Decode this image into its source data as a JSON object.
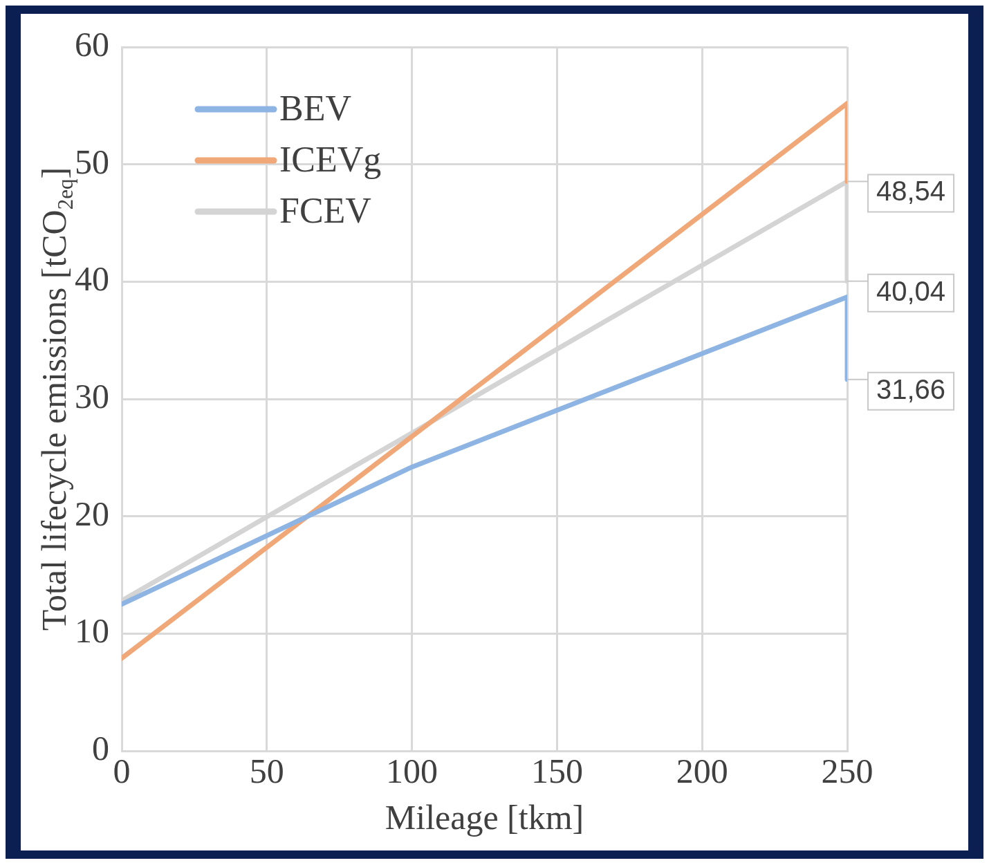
{
  "chart_data": {
    "type": "line",
    "xlabel": "Mileage [tkm]",
    "ylabel": "Total lifecycle emissions [tCO$_{2eq}$]",
    "x": [
      0,
      100,
      250,
      250
    ],
    "series": [
      {
        "name": "BEV",
        "color": "#8db4e2",
        "values": [
          12.5,
          24.2,
          38.7,
          31.66
        ],
        "value_labels": [
          null,
          null,
          null,
          "31,66"
        ]
      },
      {
        "name": "ICEVg",
        "color": "#f0a878",
        "values": [
          7.9,
          26.8,
          55.2,
          48.54
        ],
        "value_labels": [
          null,
          null,
          null,
          "48,54"
        ]
      },
      {
        "name": "FCEV",
        "color": "#d4d4d4",
        "values": [
          12.8,
          27.1,
          48.54,
          40.04
        ],
        "value_labels": [
          null,
          null,
          null,
          "40,04"
        ]
      }
    ],
    "xlim": [
      0,
      250
    ],
    "xticks": [
      0,
      50,
      100,
      150,
      200,
      250
    ],
    "ylim": [
      0,
      60
    ],
    "yticks": [
      0,
      10,
      20,
      30,
      40,
      50,
      60
    ],
    "grid": true,
    "legend": "top left",
    "marker": "none",
    "line_style": "solid"
  }
}
